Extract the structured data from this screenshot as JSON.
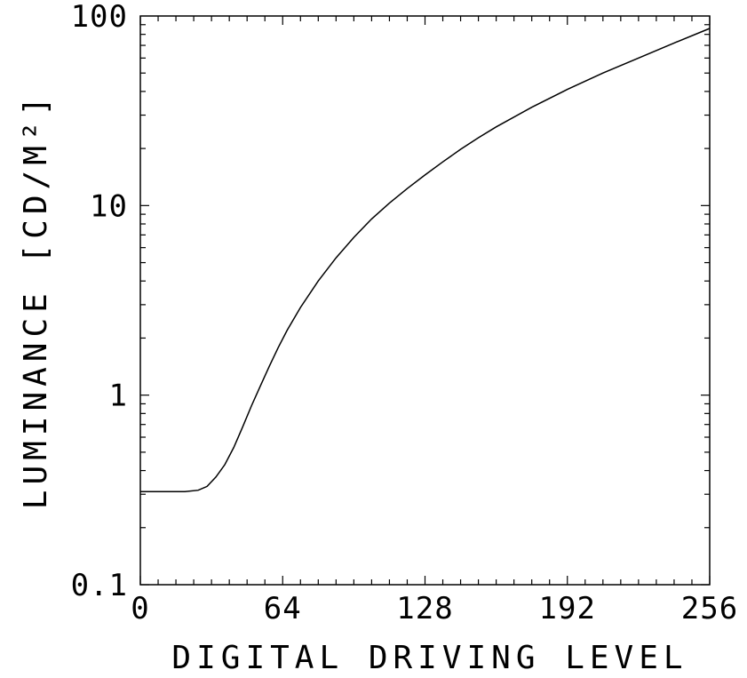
{
  "chart_data": {
    "type": "line",
    "title": "",
    "xlabel": "DIGITAL DRIVING LEVEL",
    "ylabel": "LUMINANCE [CD/M²]",
    "xlim": [
      0,
      256
    ],
    "ylim": [
      0.1,
      100
    ],
    "y_scale": "log",
    "grid": false,
    "x_ticks": [
      0,
      64,
      128,
      192,
      256
    ],
    "x_tick_labels": [
      "0",
      "64",
      "128",
      "192",
      "256"
    ],
    "y_ticks": [
      0.1,
      1,
      10,
      100
    ],
    "y_tick_labels": [
      "0.1",
      "1",
      "10",
      "100"
    ],
    "series": [
      {
        "x": [
          0,
          10,
          20,
          26,
          30,
          34,
          38,
          42,
          46,
          50,
          54,
          58,
          62,
          66,
          72,
          80,
          88,
          96,
          104,
          112,
          120,
          128,
          136,
          144,
          152,
          160,
          176,
          192,
          208,
          224,
          240,
          256
        ],
        "y": [
          0.31,
          0.31,
          0.31,
          0.315,
          0.33,
          0.37,
          0.43,
          0.53,
          0.68,
          0.88,
          1.12,
          1.42,
          1.78,
          2.2,
          2.9,
          4.0,
          5.3,
          6.8,
          8.5,
          10.3,
          12.3,
          14.5,
          17.0,
          19.8,
          22.8,
          26.0,
          33.0,
          41.0,
          50.0,
          60.0,
          72.0,
          86.0
        ]
      }
    ],
    "colors": {
      "line": "#000000",
      "axes": "#000000"
    }
  }
}
